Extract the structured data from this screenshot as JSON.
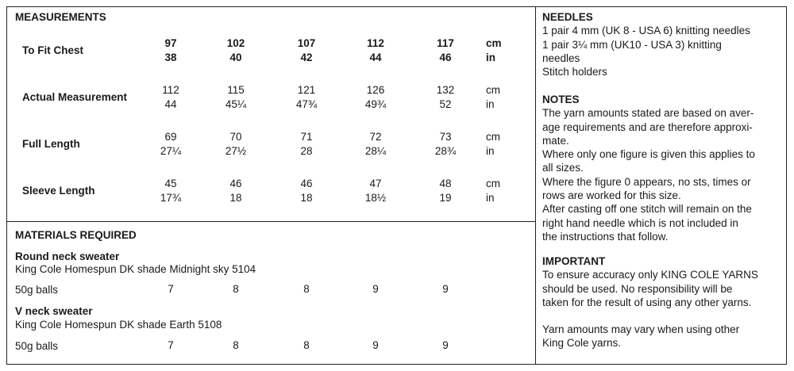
{
  "measurements": {
    "title": "MEASUREMENTS",
    "rows": [
      {
        "label": "To Fit Chest",
        "bold": true,
        "cm": [
          "97",
          "102",
          "107",
          "112",
          "117"
        ],
        "in": [
          "38",
          "40",
          "42",
          "44",
          "46"
        ]
      },
      {
        "label": "Actual Measurement",
        "bold": false,
        "cm": [
          "112",
          "115",
          "121",
          "126",
          "132"
        ],
        "in": [
          "44",
          "45¼",
          "47¾",
          "49¾",
          "52"
        ]
      },
      {
        "label": "Full Length",
        "bold": false,
        "cm": [
          "69",
          "70",
          "71",
          "72",
          "73"
        ],
        "in": [
          "27¼",
          "27½",
          "28",
          "28¼",
          "28¾"
        ]
      },
      {
        "label": "Sleeve Length",
        "bold": false,
        "cm": [
          "45",
          "46",
          "46",
          "47",
          "48"
        ],
        "in": [
          "17¾",
          "18",
          "18",
          "18½",
          "19"
        ]
      }
    ],
    "unit_cm": "cm",
    "unit_in": "in"
  },
  "materials": {
    "title": "MATERIALS REQUIRED",
    "items": [
      {
        "name": "Round neck sweater",
        "desc": "King Cole Homespun DK shade Midnight sky 5104",
        "unit_label": "50g balls",
        "values": [
          "7",
          "8",
          "8",
          "9",
          "9"
        ]
      },
      {
        "name": "V neck sweater",
        "desc": "King Cole Homespun DK shade Earth 5108",
        "unit_label": "50g balls",
        "values": [
          "7",
          "8",
          "8",
          "9",
          "9"
        ]
      }
    ]
  },
  "needles": {
    "title": "NEEDLES",
    "lines": [
      "1 pair 4 mm (UK 8 - USA 6) knitting needles",
      "1 pair 3¼ mm (UK10 - USA 3) knitting",
      "needles",
      "Stitch holders"
    ]
  },
  "notes": {
    "title": "NOTES",
    "lines": [
      "The yarn amounts stated are based on aver-",
      "age requirements and are therefore approxi-",
      "mate.",
      "Where only one figure is given this applies to",
      "all sizes.",
      "Where the figure 0 appears, no sts, times or",
      "rows are worked for this size.",
      "After casting off one stitch will remain on the",
      "right hand needle which is not included in",
      "the instructions that follow."
    ]
  },
  "important": {
    "title": "IMPORTANT",
    "lines": [
      "To ensure accuracy only KING COLE YARNS",
      "should be used. No responsibility will be",
      "taken for the result of using any other yarns."
    ],
    "extra_lines": [
      "Yarn amounts may vary when using other",
      "King Cole yarns."
    ]
  }
}
